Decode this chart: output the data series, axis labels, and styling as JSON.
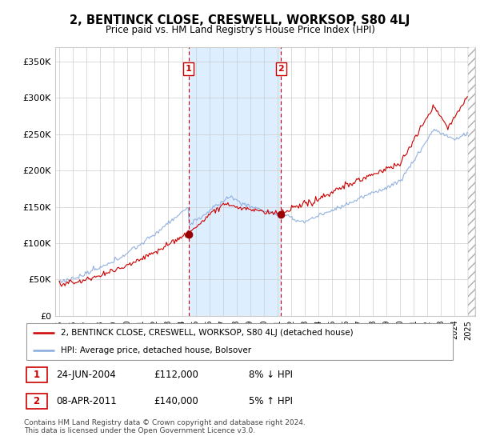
{
  "title": "2, BENTINCK CLOSE, CRESWELL, WORKSOP, S80 4LJ",
  "subtitle": "Price paid vs. HM Land Registry's House Price Index (HPI)",
  "ylabel_ticks": [
    "£0",
    "£50K",
    "£100K",
    "£150K",
    "£200K",
    "£250K",
    "£300K",
    "£350K"
  ],
  "ytick_vals": [
    0,
    50000,
    100000,
    150000,
    200000,
    250000,
    300000,
    350000
  ],
  "ylim": [
    0,
    370000
  ],
  "xlim_start": 1994.7,
  "xlim_end": 2025.5,
  "sale1_x": 2004.48,
  "sale1_y": 112000,
  "sale1_label": "1",
  "sale2_x": 2011.27,
  "sale2_y": 140000,
  "sale2_label": "2",
  "legend_red": "2, BENTINCK CLOSE, CRESWELL, WORKSOP, S80 4LJ (detached house)",
  "legend_blue": "HPI: Average price, detached house, Bolsover",
  "table_row1": [
    "1",
    "24-JUN-2004",
    "£112,000",
    "8% ↓ HPI"
  ],
  "table_row2": [
    "2",
    "08-APR-2011",
    "£140,000",
    "5% ↑ HPI"
  ],
  "footer": "Contains HM Land Registry data © Crown copyright and database right 2024.\nThis data is licensed under the Open Government Licence v3.0.",
  "red_color": "#cc0000",
  "blue_color": "#88aadd",
  "shade_color": "#ddeeff",
  "background_color": "#ffffff",
  "marker_color": "#990000"
}
